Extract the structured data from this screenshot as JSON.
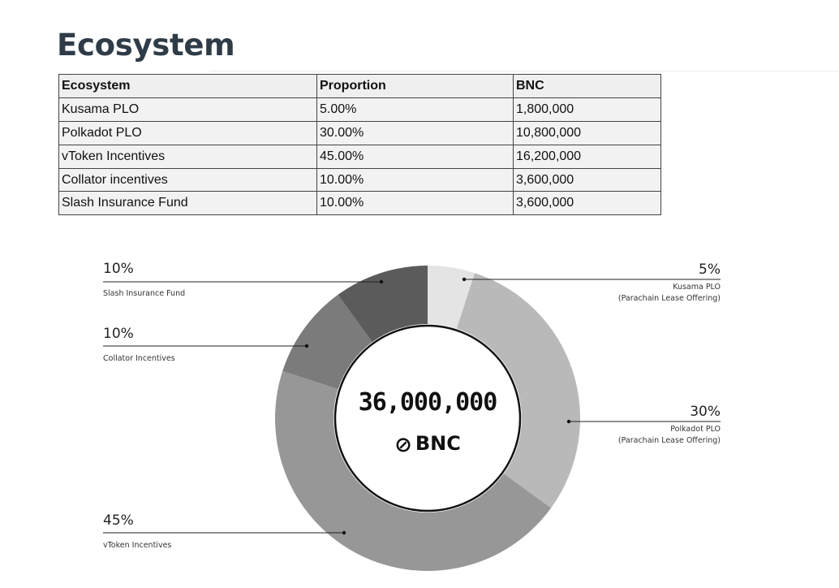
{
  "page": {
    "title": "Ecosystem"
  },
  "table": {
    "headers": [
      "Ecosystem",
      "Proportion",
      "BNC"
    ],
    "rows": [
      [
        "Kusama PLO",
        "5.00%",
        "1,800,000"
      ],
      [
        "Polkadot PLO",
        "30.00%",
        "10,800,000"
      ],
      [
        "vToken Incentives",
        "45.00%",
        "16,200,000"
      ],
      [
        "Collator incentives",
        "10.00%",
        "3,600,000"
      ],
      [
        "Slash Insurance Fund",
        "10.00%",
        "3,600,000"
      ]
    ]
  },
  "chart_data": {
    "type": "pie",
    "donut": true,
    "center_total": "36,000,000",
    "center_unit": "BNC",
    "slices": [
      {
        "pct_label": "5%",
        "value": 5,
        "name": "Kusama PLO",
        "desc2": "(Parachain Lease Offering)",
        "color": "#e4e4e4"
      },
      {
        "pct_label": "30%",
        "value": 30,
        "name": "Polkadot PLO",
        "desc2": "(Parachain Lease Offering)",
        "color": "#b9b9b9"
      },
      {
        "pct_label": "45%",
        "value": 45,
        "name": "vToken Incentives",
        "desc2": "",
        "color": "#979797"
      },
      {
        "pct_label": "10%",
        "value": 10,
        "name": "Collator Incentives",
        "desc2": "",
        "color": "#7b7b7b"
      },
      {
        "pct_label": "10%",
        "value": 10,
        "name": "Slash Insurance Fund",
        "desc2": "",
        "color": "#5b5b5b"
      }
    ]
  }
}
